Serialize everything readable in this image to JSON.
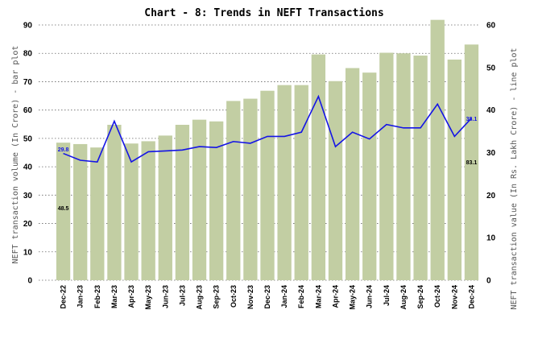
{
  "chart_data": {
    "type": "bar",
    "title": "Chart - 8: Trends in NEFT Transactions",
    "ylabel": "NEFT transaction volume (In Crore) - bar plot",
    "y2label": "NEFT transaction value (In Rs. Lakh Crore) - line plot",
    "ylim": [
      0,
      90
    ],
    "y2lim": [
      0,
      60
    ],
    "yticks": [
      0,
      10,
      20,
      30,
      40,
      50,
      60,
      70,
      80,
      90
    ],
    "y2ticks": [
      0,
      10,
      20,
      30,
      40,
      50,
      60
    ],
    "grid": true,
    "categories": [
      "Dec-22",
      "Jan-23",
      "Feb-23",
      "Mar-23",
      "Apr-23",
      "May-23",
      "Jun-23",
      "Jul-23",
      "Aug-23",
      "Sep-23",
      "Oct-23",
      "Nov-23",
      "Dec-23",
      "Jan-24",
      "Feb-24",
      "Mar-24",
      "Apr-24",
      "May-24",
      "Jun-24",
      "Jul-24",
      "Aug-24",
      "Sep-24",
      "Oct-24",
      "Nov-24",
      "Dec-24"
    ],
    "series": [
      {
        "type": "bar",
        "axis": "left",
        "color": "#c2cea3",
        "values": [
          48.5,
          48.0,
          46.8,
          54.8,
          48.2,
          49.0,
          51.0,
          54.8,
          56.6,
          56.0,
          63.2,
          64.0,
          66.8,
          68.8,
          68.8,
          79.6,
          70.2,
          74.8,
          73.2,
          80.2,
          80.0,
          79.2,
          91.8,
          77.8,
          83.1
        ]
      },
      {
        "type": "line",
        "axis": "right",
        "color": "#1414e6",
        "values": [
          29.8,
          28.2,
          27.8,
          37.4,
          27.8,
          30.2,
          30.4,
          30.6,
          31.4,
          31.2,
          32.6,
          32.2,
          33.8,
          33.8,
          34.8,
          43.2,
          31.4,
          34.8,
          33.2,
          36.6,
          35.8,
          35.8,
          41.4,
          33.8,
          38.1
        ]
      }
    ],
    "annotations": [
      {
        "text": "29.8",
        "index": 0,
        "color": "#1414e6"
      },
      {
        "text": "48.5",
        "index": 0,
        "color": "#000000"
      },
      {
        "text": "38.1",
        "index": 24,
        "color": "#1414e6"
      },
      {
        "text": "83.1",
        "index": 24,
        "color": "#000000"
      }
    ]
  }
}
